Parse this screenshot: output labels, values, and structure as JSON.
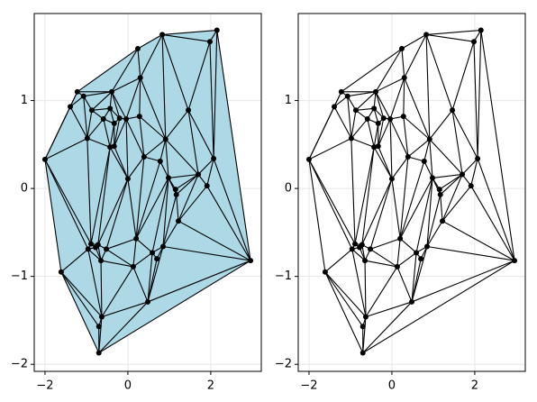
{
  "chart_data": [
    {
      "type": "triplot",
      "fill": "#add8e6",
      "color": "#000000",
      "grid": true,
      "xlim": [
        -2.26,
        3.22
      ],
      "ylim": [
        -2.08,
        1.99
      ],
      "xticks": [
        {
          "value": -2,
          "label": "−2"
        },
        0,
        2
      ],
      "yticks": [
        {
          "value": -2,
          "label": "−2"
        },
        {
          "value": -1,
          "label": "−1"
        },
        0,
        1
      ],
      "x": [
        -2.0,
        2.15,
        0.83,
        1.98,
        0.24,
        2.96,
        -0.7,
        -1.61,
        -1.22,
        -1.39,
        -1.07,
        -0.39,
        0.3,
        1.46,
        -0.87,
        -0.59,
        -0.43,
        -0.33,
        -0.2,
        -0.04,
        0.28,
        -0.98,
        -0.43,
        -0.33,
        0.91,
        0.39,
        0.78,
        2.07,
        1.7,
        0.0,
        0.98,
        1.15,
        1.91,
        1.17,
        1.22,
        -0.89,
        -0.72,
        -0.78,
        -0.96,
        -0.52,
        0.2,
        0.85,
        0.59,
        0.7,
        -0.65,
        0.13,
        0.48,
        -0.63,
        -0.7
      ],
      "y": [
        0.33,
        1.8,
        1.75,
        1.67,
        1.59,
        -0.82,
        -1.87,
        -0.95,
        1.1,
        0.93,
        1.05,
        1.1,
        1.26,
        0.89,
        0.89,
        0.79,
        0.91,
        0.74,
        0.8,
        0.79,
        0.82,
        0.57,
        0.47,
        0.48,
        0.56,
        0.36,
        0.31,
        0.34,
        0.16,
        0.11,
        0.12,
        -0.01,
        0.03,
        -0.07,
        -0.37,
        -0.63,
        -0.64,
        -0.67,
        -0.69,
        -0.69,
        -0.57,
        -0.66,
        -0.73,
        -0.8,
        -0.82,
        -0.89,
        -1.29,
        -1.46,
        -1.57
      ]
    },
    {
      "type": "triplot",
      "fill": null,
      "color": "#000000",
      "grid": true,
      "xlim": [
        -2.26,
        3.22
      ],
      "ylim": [
        -2.08,
        1.99
      ],
      "xticks": [
        {
          "value": -2,
          "label": "−2"
        },
        0,
        2
      ],
      "yticks": [
        {
          "value": -2,
          "label": "−2"
        },
        {
          "value": -1,
          "label": "−1"
        },
        0,
        1
      ],
      "x": [
        -2.0,
        2.15,
        0.83,
        1.98,
        0.24,
        2.96,
        -0.7,
        -1.61,
        -1.22,
        -1.39,
        -1.07,
        -0.39,
        0.3,
        1.46,
        -0.87,
        -0.59,
        -0.43,
        -0.33,
        -0.2,
        -0.04,
        0.28,
        -0.98,
        -0.43,
        -0.33,
        0.91,
        0.39,
        0.78,
        2.07,
        1.7,
        0.0,
        0.98,
        1.15,
        1.91,
        1.17,
        1.22,
        -0.89,
        -0.72,
        -0.78,
        -0.96,
        -0.52,
        0.2,
        0.85,
        0.59,
        0.7,
        -0.65,
        0.13,
        0.48,
        -0.63,
        -0.7
      ],
      "y": [
        0.33,
        1.8,
        1.75,
        1.67,
        1.59,
        -0.82,
        -1.87,
        -0.95,
        1.1,
        0.93,
        1.05,
        1.1,
        1.26,
        0.89,
        0.89,
        0.79,
        0.91,
        0.74,
        0.8,
        0.79,
        0.82,
        0.57,
        0.47,
        0.48,
        0.56,
        0.36,
        0.31,
        0.34,
        0.16,
        0.11,
        0.12,
        -0.01,
        0.03,
        -0.07,
        -0.37,
        -0.63,
        -0.64,
        -0.67,
        -0.69,
        -0.69,
        -0.57,
        -0.66,
        -0.73,
        -0.8,
        -0.82,
        -0.89,
        -1.29,
        -1.46,
        -1.57
      ]
    }
  ]
}
